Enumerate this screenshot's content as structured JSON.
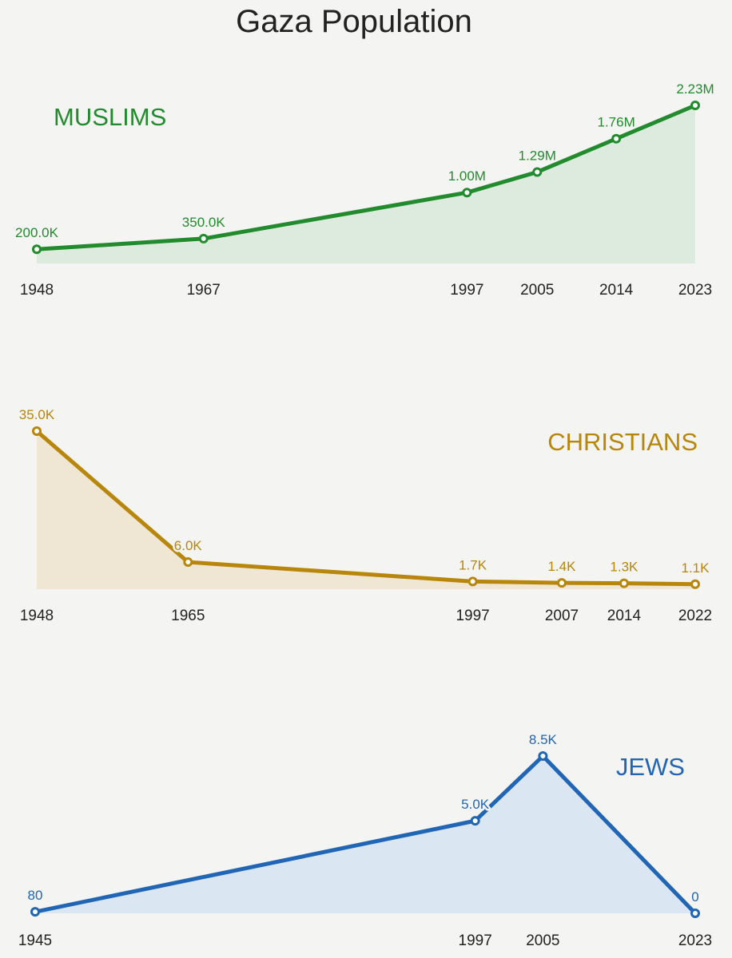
{
  "title": "Gaza Population",
  "chart_data": [
    {
      "type": "area",
      "label": "MUSLIMS",
      "color": "#228b2e",
      "fill": "#dcebdd",
      "label_position": "top-left",
      "x": [
        1948,
        1967,
        1997,
        2005,
        2014,
        2023
      ],
      "values": [
        200000,
        350000,
        1000000,
        1290000,
        1760000,
        2230000
      ],
      "data_labels": [
        "200.0K",
        "350.0K",
        "1.00M",
        "1.29M",
        "1.76M",
        "2.23M"
      ],
      "tick_labels": [
        "1948",
        "1967",
        "1997",
        "2005",
        "2014",
        "2023"
      ],
      "xlim": [
        1948,
        2023
      ],
      "ylim": [
        0,
        2230000
      ],
      "grid": false
    },
    {
      "type": "area",
      "label": "CHRISTIANS",
      "color": "#b8860b",
      "fill": "#efe6d4",
      "label_position": "top-right",
      "x": [
        1948,
        1965,
        1997,
        2007,
        2014,
        2022
      ],
      "values": [
        35000,
        6000,
        1700,
        1400,
        1300,
        1100
      ],
      "data_labels": [
        "35.0K",
        "6.0K",
        "1.7K",
        "1.4K",
        "1.3K",
        "1.1K"
      ],
      "tick_labels": [
        "1948",
        "1965",
        "1997",
        "2007",
        "2014",
        "2022"
      ],
      "xlim": [
        1948,
        2022
      ],
      "ylim": [
        0,
        35000
      ],
      "grid": false
    },
    {
      "type": "area",
      "label": "JEWS",
      "color": "#2166b4",
      "fill": "#dbe6f3",
      "label_position": "top-right",
      "x": [
        1945,
        1997,
        2005,
        2023
      ],
      "values": [
        80,
        5000,
        8500,
        0
      ],
      "data_labels": [
        "80",
        "5.0K",
        "8.5K",
        "0"
      ],
      "tick_labels": [
        "1945",
        "1997",
        "2005",
        "2023"
      ],
      "xlim": [
        1945,
        2023
      ],
      "ylim": [
        0,
        8500
      ],
      "grid": false
    }
  ]
}
